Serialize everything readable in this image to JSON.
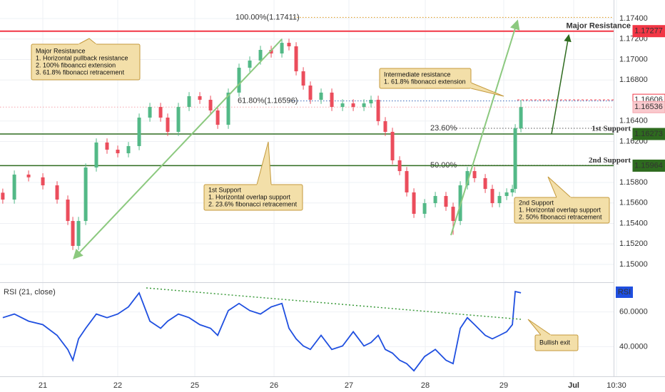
{
  "chart_data": {
    "type": "candlestick",
    "x": [
      -0.52,
      -0.37,
      -0.185,
      0,
      0.185,
      0.324,
      0.389,
      0.463,
      0.556,
      0.694,
      0.833,
      0.972,
      1.111,
      1.25,
      1.389,
      1.528,
      1.62,
      1.759,
      1.898,
      2.037,
      2.176,
      2.269,
      2.407,
      2.546,
      2.685,
      2.824,
      2.963,
      3.102,
      3.194,
      3.287,
      3.38,
      3.472,
      3.611,
      3.75,
      3.889,
      4.028,
      4.167,
      4.259,
      4.352,
      4.444,
      4.537,
      4.63,
      4.722,
      4.815,
      4.954,
      5.093,
      5.231,
      5.324,
      5.417,
      5.509,
      5.602,
      5.741,
      5.833,
      5.926,
      6.019,
      6.093,
      6.13,
      6.204
    ],
    "open": [
      1.157,
      1.15633,
      1.15877,
      1.1585,
      1.15772,
      1.15633,
      1.15424,
      1.15181,
      1.15424,
      1.15946,
      1.1619,
      1.1612,
      1.16085,
      1.16155,
      1.16433,
      1.16537,
      1.16433,
      1.16294,
      1.16537,
      1.16642,
      1.16607,
      1.16503,
      1.16363,
      1.16677,
      1.1692,
      1.1699,
      1.17094,
      1.17059,
      1.17163,
      1.17129,
      1.16885,
      1.16746,
      1.16607,
      1.16677,
      1.16537,
      1.16572,
      1.16537,
      1.16572,
      1.16607,
      1.16398,
      1.16294,
      1.16016,
      1.15911,
      1.15703,
      1.15494,
      1.15598,
      1.15668,
      1.15563,
      1.15424,
      1.15772,
      1.15911,
      1.15842,
      1.15737,
      1.15598,
      1.15668,
      1.15703,
      1.15737,
      1.16329
    ],
    "high": [
      1.1574,
      1.15917,
      1.15917,
      1.1589,
      1.15812,
      1.15673,
      1.15464,
      1.15464,
      1.15986,
      1.1623,
      1.1623,
      1.1616,
      1.16195,
      1.16473,
      1.16577,
      1.16577,
      1.16473,
      1.16577,
      1.16682,
      1.16682,
      1.16647,
      1.16543,
      1.16717,
      1.1696,
      1.1703,
      1.17134,
      1.17134,
      1.17203,
      1.17203,
      1.17169,
      1.16925,
      1.16786,
      1.16717,
      1.16717,
      1.16612,
      1.16612,
      1.16612,
      1.16647,
      1.16647,
      1.16438,
      1.16334,
      1.16056,
      1.15951,
      1.15743,
      1.15638,
      1.15708,
      1.15708,
      1.15603,
      1.15812,
      1.15951,
      1.15951,
      1.15882,
      1.15777,
      1.15708,
      1.15743,
      1.15777,
      1.16369,
      1.16606
    ],
    "low": [
      1.15593,
      1.15593,
      1.1581,
      1.15732,
      1.15593,
      1.15384,
      1.15141,
      1.15141,
      1.15384,
      1.15906,
      1.1608,
      1.16045,
      1.16045,
      1.16115,
      1.16393,
      1.16393,
      1.16254,
      1.16254,
      1.16497,
      1.16567,
      1.16463,
      1.16323,
      1.16323,
      1.16637,
      1.1688,
      1.1695,
      1.17019,
      1.17019,
      1.17089,
      1.16845,
      1.16706,
      1.16567,
      1.16567,
      1.16497,
      1.16497,
      1.16497,
      1.16497,
      1.16532,
      1.16358,
      1.16254,
      1.15976,
      1.15871,
      1.15663,
      1.15454,
      1.15454,
      1.15558,
      1.15523,
      1.1529,
      1.15384,
      1.15732,
      1.15802,
      1.15697,
      1.15558,
      1.15558,
      1.15628,
      1.15663,
      1.15697,
      1.16289
    ],
    "close": [
      1.15633,
      1.15877,
      1.1585,
      1.15772,
      1.15633,
      1.15424,
      1.15181,
      1.15424,
      1.15946,
      1.1619,
      1.1612,
      1.16085,
      1.16155,
      1.16433,
      1.16537,
      1.16433,
      1.16294,
      1.16537,
      1.16642,
      1.16607,
      1.16503,
      1.16363,
      1.16677,
      1.1692,
      1.1699,
      1.17094,
      1.17059,
      1.17163,
      1.17129,
      1.16885,
      1.16746,
      1.16607,
      1.16677,
      1.16537,
      1.16572,
      1.16537,
      1.16572,
      1.16607,
      1.16398,
      1.16294,
      1.16016,
      1.15911,
      1.15703,
      1.15494,
      1.15598,
      1.15668,
      1.15563,
      1.15424,
      1.15772,
      1.15911,
      1.15842,
      1.15737,
      1.15598,
      1.15668,
      1.15703,
      1.15737,
      1.16329,
      1.16536
    ],
    "up_color": "#53b987",
    "down_color": "#eb4d5c",
    "xlim": [
      -0.556,
      7.407
    ],
    "xticks": [
      {
        "value": 0,
        "label": "21"
      },
      {
        "value": 0.972,
        "label": "22"
      },
      {
        "value": 1.972,
        "label": "25"
      },
      {
        "value": 3.0,
        "label": "26"
      },
      {
        "value": 3.972,
        "label": "27"
      },
      {
        "value": 4.963,
        "label": "28"
      },
      {
        "value": 5.981,
        "label": "29"
      },
      {
        "value": 6.889,
        "label": "Jul"
      },
      {
        "value": 7.444,
        "label": "10:30"
      }
    ],
    "ylim": [
      1.14833,
      1.17581
    ],
    "yticks": [
      {
        "value": 1.15,
        "label": "1.15000"
      },
      {
        "value": 1.152,
        "label": "1.15200"
      },
      {
        "value": 1.154,
        "label": "1.15400"
      },
      {
        "value": 1.156,
        "label": "1.15600"
      },
      {
        "value": 1.158,
        "label": "1.15800"
      },
      {
        "value": 1.162,
        "label": "1.16200"
      },
      {
        "value": 1.164,
        "label": "1.16400"
      },
      {
        "value": 1.168,
        "label": "1.16800"
      },
      {
        "value": 1.17,
        "label": "1.17000"
      },
      {
        "value": 1.172,
        "label": "1.17200"
      },
      {
        "value": 1.174,
        "label": "1.17400"
      }
    ],
    "grid": true,
    "levels": [
      {
        "value": 1.17277,
        "color": "#f23645",
        "name": "Major Resistance"
      },
      {
        "value": 1.16606,
        "color": "#f23645"
      },
      {
        "value": 1.16536,
        "color": "#f5a3ab"
      },
      {
        "value": 1.16273,
        "color": "#2e6b1f",
        "name": "1st Support"
      },
      {
        "value": 1.15964,
        "color": "#2e6b1f",
        "name": "2nd Support"
      }
    ],
    "fib_levels": [
      {
        "label": "100.00%(1.17411)",
        "value": 1.17411,
        "color": "#e0a030"
      },
      {
        "label": "61.80%(1.16596)",
        "value": 1.16596,
        "color": "#4a76c0"
      },
      {
        "label": "23.60%",
        "value": 1.16329,
        "color": "#777777"
      },
      {
        "label": "50.00%",
        "value": 1.15967,
        "color": "#777777"
      }
    ],
    "callouts": [
      {
        "lines": [
          "Major Resistance",
          "1. Horizontal pullback resistance",
          "2. 100% fiboancci extension",
          "3. 61.8% fibonacci retracement"
        ]
      },
      {
        "lines": [
          "Intermediate resistance",
          "1. 61.8% fibonacci extension"
        ]
      },
      {
        "lines": [
          "1st Support",
          "1. Horizontal overlap support",
          "2. 23.6% fibonacci retracement"
        ]
      },
      {
        "lines": [
          "2nd Support",
          "1. Horizontal overlap support",
          "2. 50% fibonacci retracement"
        ]
      },
      {
        "lines": [
          "Bullish exit"
        ]
      }
    ],
    "rsi": {
      "label": "RSI (21, close)",
      "badge": "RSI",
      "color": "#1f4fe0",
      "values": [
        56.7,
        58.8,
        54.7,
        52.7,
        46.5,
        38.4,
        32.2,
        44.5,
        50.6,
        58.8,
        56.7,
        58.8,
        62.9,
        71.0,
        54.7,
        50.6,
        54.7,
        58.8,
        56.7,
        52.7,
        50.6,
        46.5,
        60.8,
        64.9,
        60.8,
        58.8,
        62.9,
        64.9,
        50.6,
        44.5,
        40.4,
        38.4,
        46.5,
        38.4,
        40.4,
        48.6,
        40.4,
        42.4,
        46.5,
        38.4,
        36.3,
        32.2,
        30.2,
        26.1,
        34.3,
        38.4,
        32.2,
        30.2,
        50.6,
        56.7,
        52.7,
        46.5,
        44.5,
        46.5,
        48.6,
        52.7,
        71.8,
        71.0
      ],
      "ylim": [
        22.9,
        76.3
      ],
      "yticks": [
        {
          "value": 40,
          "label": "40.0000"
        },
        {
          "value": 60,
          "label": "60.0000"
        }
      ]
    }
  }
}
